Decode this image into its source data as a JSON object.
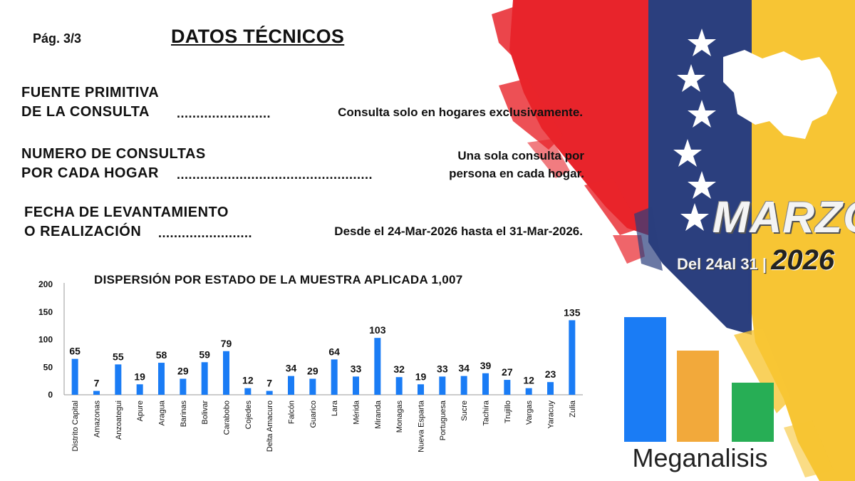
{
  "header": {
    "page_label": "Pág.  3/3",
    "title": "DATOS TÉCNICOS"
  },
  "rows": [
    {
      "label_line1": "FUENTE PRIMITIVA",
      "label_line2": "DE LA CONSULTA",
      "dots": "........................",
      "value_line1": "Consulta solo en hogares exclusivamente.",
      "value_line2": ""
    },
    {
      "label_line1": "NUMERO DE CONSULTAS",
      "label_line2": "POR CADA HOGAR",
      "dots": "..................................................",
      "value_line1": "Una sola consulta por",
      "value_line2": "persona en cada hogar."
    },
    {
      "label_line1": "FECHA DE LEVANTAMIENTO",
      "label_line2": "O REALIZACIÓN",
      "dots": "........................",
      "value_line1": "Desde el 24-Mar-2026 hasta el 31-Mar-2026.",
      "value_line2": ""
    }
  ],
  "banner": {
    "month": "MARZO",
    "range_prefix": "Del ",
    "range_start": "24",
    "range_mid": "al ",
    "range_end": "31",
    "range_sep": " | ",
    "year": "2026"
  },
  "brand": {
    "name": "Meganalisis",
    "bar_colors": [
      "#1a7cf5",
      "#f2a93b",
      "#27ae55"
    ]
  },
  "colors": {
    "bar": "#1a7cf5",
    "flag_red": "#e8242b",
    "flag_blue": "#2b3f7e",
    "flag_yellow": "#f7c534"
  },
  "chart_data": {
    "type": "bar",
    "title": "DISPERSIÓN POR ESTADO DE LA MUESTRA APLICADA 1,007",
    "categories": [
      "Distrito Capital",
      "Amazonas",
      "Anzoategui",
      "Apure",
      "Aragua",
      "Barinas",
      "Bolivar",
      "Carabobo",
      "Cojedes",
      "Delta Amacuro",
      "Falcón",
      "Guarico",
      "Lara",
      "Mérida",
      "Miranda",
      "Monagas",
      "Nueva Esparta",
      "Portuguesa",
      "Sucre",
      "Tachira",
      "Trujillo",
      "Vargas",
      "Yaracuy",
      "Zulia"
    ],
    "values": [
      65,
      7,
      55,
      19,
      58,
      29,
      59,
      79,
      12,
      7,
      34,
      29,
      64,
      33,
      103,
      32,
      19,
      33,
      34,
      39,
      27,
      12,
      23,
      135
    ],
    "ylim": [
      0,
      200
    ],
    "yticks": [
      0,
      50,
      100,
      150,
      200
    ],
    "xlabel": "",
    "ylabel": "",
    "grid": false,
    "legend": "none"
  }
}
